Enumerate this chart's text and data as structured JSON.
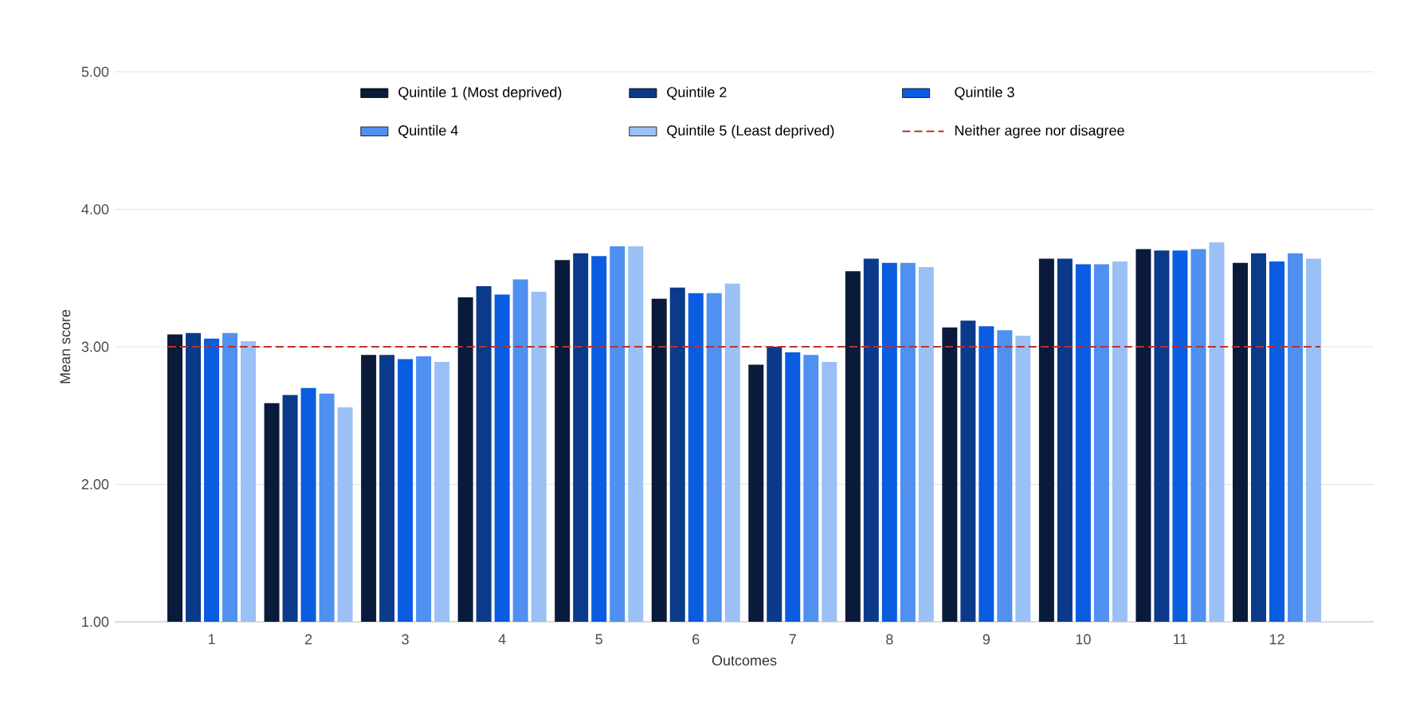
{
  "chart_data": {
    "type": "bar",
    "xlabel": "Outcomes",
    "ylabel": "Mean score",
    "categories": [
      "1",
      "2",
      "3",
      "4",
      "5",
      "6",
      "7",
      "8",
      "9",
      "10",
      "11",
      "12"
    ],
    "series": [
      {
        "name": "Quintile 1 (Most deprived)",
        "color": "#0a1a3a",
        "values": [
          3.09,
          2.59,
          2.94,
          3.36,
          3.63,
          3.35,
          2.87,
          3.55,
          3.14,
          3.64,
          3.71,
          3.61
        ]
      },
      {
        "name": "Quintile 2",
        "color": "#0b3a8a",
        "values": [
          3.1,
          2.65,
          2.94,
          3.44,
          3.68,
          3.43,
          3.0,
          3.64,
          3.19,
          3.64,
          3.7,
          3.68
        ]
      },
      {
        "name": "Quintile 3",
        "color": "#0a5ce0",
        "values": [
          3.06,
          2.7,
          2.91,
          3.38,
          3.66,
          3.39,
          2.96,
          3.61,
          3.15,
          3.6,
          3.7,
          3.62
        ]
      },
      {
        "name": "Quintile 4",
        "color": "#4f90f0",
        "values": [
          3.1,
          2.66,
          2.93,
          3.49,
          3.73,
          3.39,
          2.94,
          3.61,
          3.12,
          3.6,
          3.71,
          3.68
        ]
      },
      {
        "name": "Quintile 5 (Least deprived)",
        "color": "#9bc0f5",
        "values": [
          3.04,
          2.56,
          2.89,
          3.4,
          3.73,
          3.46,
          2.89,
          3.58,
          3.08,
          3.62,
          3.76,
          3.64
        ]
      }
    ],
    "ylim": [
      1,
      5
    ],
    "yticks": [
      {
        "value": 1,
        "label": "1.00"
      },
      {
        "value": 2,
        "label": "2.00"
      },
      {
        "value": 3,
        "label": "3.00"
      },
      {
        "value": 4,
        "label": "4.00"
      },
      {
        "value": 5,
        "label": "5.00"
      }
    ],
    "ref_lines": [
      {
        "axis": "y",
        "value": 3,
        "label": "Neither agree nor disagree",
        "color": "#c0302a",
        "line_style": "dashed"
      }
    ],
    "grid": "y",
    "legend": "top"
  }
}
